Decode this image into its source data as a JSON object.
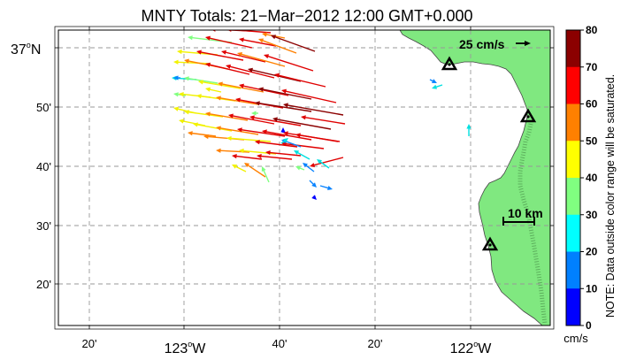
{
  "title": "MNTY Totals: 21−Mar−2012 12:00 GMT+0.000",
  "axes": {
    "y_ticks": [
      {
        "label": "37",
        "suffix": "N",
        "big": true
      },
      {
        "label": "50'",
        "big": false
      },
      {
        "label": "40'",
        "big": false
      },
      {
        "label": "30'",
        "big": false
      },
      {
        "label": "20'",
        "big": false
      }
    ],
    "x_ticks": [
      {
        "label": "20'",
        "big": false
      },
      {
        "label": "123",
        "suffix": "W",
        "big": true
      },
      {
        "label": "40'",
        "big": false
      },
      {
        "label": "20'",
        "big": false
      },
      {
        "label": "122",
        "suffix": "W",
        "big": true
      }
    ]
  },
  "scale_vector_label": "25 cm/s",
  "scale_bar_label": "10 km",
  "colorbar": {
    "ticks": [
      "80",
      "70",
      "60",
      "50",
      "40",
      "30",
      "20",
      "10",
      "0"
    ],
    "units": "cm/s",
    "colors": [
      "#8b0000",
      "#ff0000",
      "#ff8000",
      "#ffff00",
      "#80ff80",
      "#00ffff",
      "#0080ff",
      "#0000ff"
    ],
    "note": "NOTE: Data outside color range will be saturated."
  },
  "colors": {
    "land": "#80e880",
    "grid": "#999999",
    "coast": "#555555"
  },
  "stations": [
    "station-1",
    "station-2",
    "station-3"
  ]
}
